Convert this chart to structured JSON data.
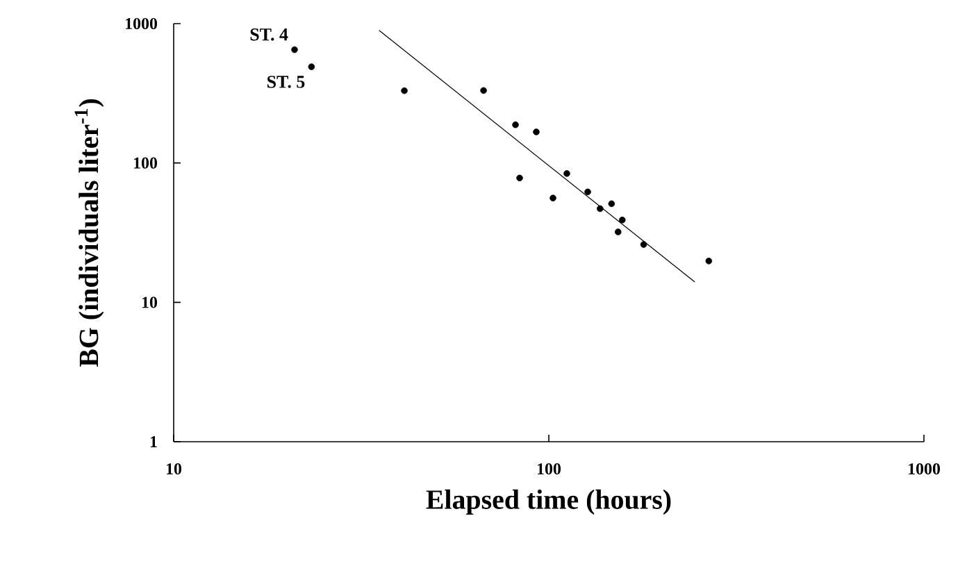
{
  "chart_data": {
    "type": "scatter",
    "xlabel": "Elapsed time (hours)",
    "ylabel": "BG (individuals liter$^{-1}$)",
    "log": "xy",
    "grid": false,
    "xlim": [
      10,
      1000
    ],
    "ylim": [
      1,
      1000
    ],
    "xticks": [
      10,
      100,
      1000
    ],
    "yticks": [
      1,
      10,
      100,
      1000
    ],
    "series": [
      {
        "marker": "circle",
        "color": "#000000",
        "x": [
          21.0,
          23.3,
          41.2,
          67,
          81.5,
          92.6,
          83.6,
          111.7,
          102.6,
          127,
          137,
          147,
          157,
          153,
          179,
          267
        ],
        "values": [
          650,
          490,
          330,
          331,
          188,
          167,
          78,
          84,
          56,
          62,
          47,
          51,
          39,
          32,
          26,
          19.8
        ]
      },
      {
        "type": "line",
        "marker": "none",
        "color": "#000000",
        "x": [
          35.3,
          245
        ],
        "values": [
          894,
          14.0
        ]
      }
    ],
    "annotations": [
      {
        "text": "ST. 4",
        "x": 21.0,
        "y": 650
      },
      {
        "text": "ST. 5",
        "x": 23.3,
        "y": 490
      }
    ]
  }
}
